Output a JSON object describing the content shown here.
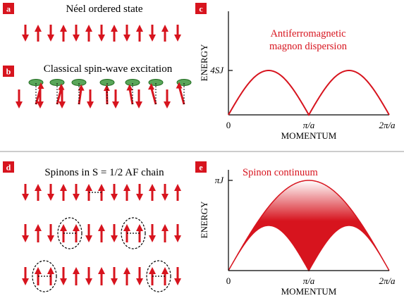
{
  "colors": {
    "accent": "#d7141e",
    "axis": "#000000",
    "divider": "#9a9a9a",
    "ellipse_fill": "#5aa65a",
    "ellipse_stroke": "#1e6b1e"
  },
  "panels": {
    "a": {
      "letter": "a",
      "title": "Néel ordered state"
    },
    "b": {
      "letter": "b",
      "title": "Classical spin-wave excitation"
    },
    "c": {
      "letter": "c",
      "annotation_line1": "Antiferromagnetic",
      "annotation_line2": "magnon dispersion",
      "ylabel": "ENERGY",
      "xlabel": "MOMENTUM",
      "ytick": "4SJ",
      "xticks": [
        "0",
        "π/a",
        "2π/a"
      ]
    },
    "d": {
      "letter": "d",
      "title": "Spinons in S = 1/2 AF chain"
    },
    "e": {
      "letter": "e",
      "annotation": "Spinon continuum",
      "ylabel": "ENERGY",
      "xlabel": "MOMENTUM",
      "ytick": "πJ",
      "xticks": [
        "0",
        "π/a",
        "2π/a"
      ]
    }
  },
  "chart_data": [
    {
      "type": "line",
      "title": "Antiferromagnetic magnon dispersion",
      "xlabel": "MOMENTUM",
      "ylabel": "ENERGY",
      "x_units": "π/a",
      "xlim": [
        0,
        2
      ],
      "xticks": [
        "0",
        "π/a",
        "2π/a"
      ],
      "ytick": "4SJ",
      "series": [
        {
          "x": [
            0,
            0.25,
            0.5,
            0.75,
            1,
            1.25,
            1.5,
            1.75,
            2
          ],
          "y": [
            0,
            0.71,
            1,
            0.71,
            0,
            0.71,
            1,
            0.71,
            0
          ]
        }
      ]
    },
    {
      "type": "area",
      "title": "Spinon continuum",
      "xlabel": "MOMENTUM",
      "ylabel": "ENERGY",
      "x_units": "π/a",
      "xlim": [
        0,
        2
      ],
      "xticks": [
        "0",
        "π/a",
        "2π/a"
      ],
      "ytick": "πJ",
      "series": [
        {
          "x": [
            0,
            0.25,
            0.5,
            0.75,
            1,
            1.25,
            1.5,
            1.75,
            2
          ],
          "y": [
            0,
            0.38,
            0.71,
            0.92,
            1,
            0.92,
            0.71,
            0.38,
            0
          ]
        },
        {
          "x": [
            0,
            0.25,
            0.5,
            0.75,
            1,
            1.25,
            1.5,
            1.75,
            2
          ],
          "y": [
            0,
            0.27,
            0.5,
            0.27,
            0,
            0.27,
            0.5,
            0.27,
            0
          ]
        }
      ]
    }
  ]
}
